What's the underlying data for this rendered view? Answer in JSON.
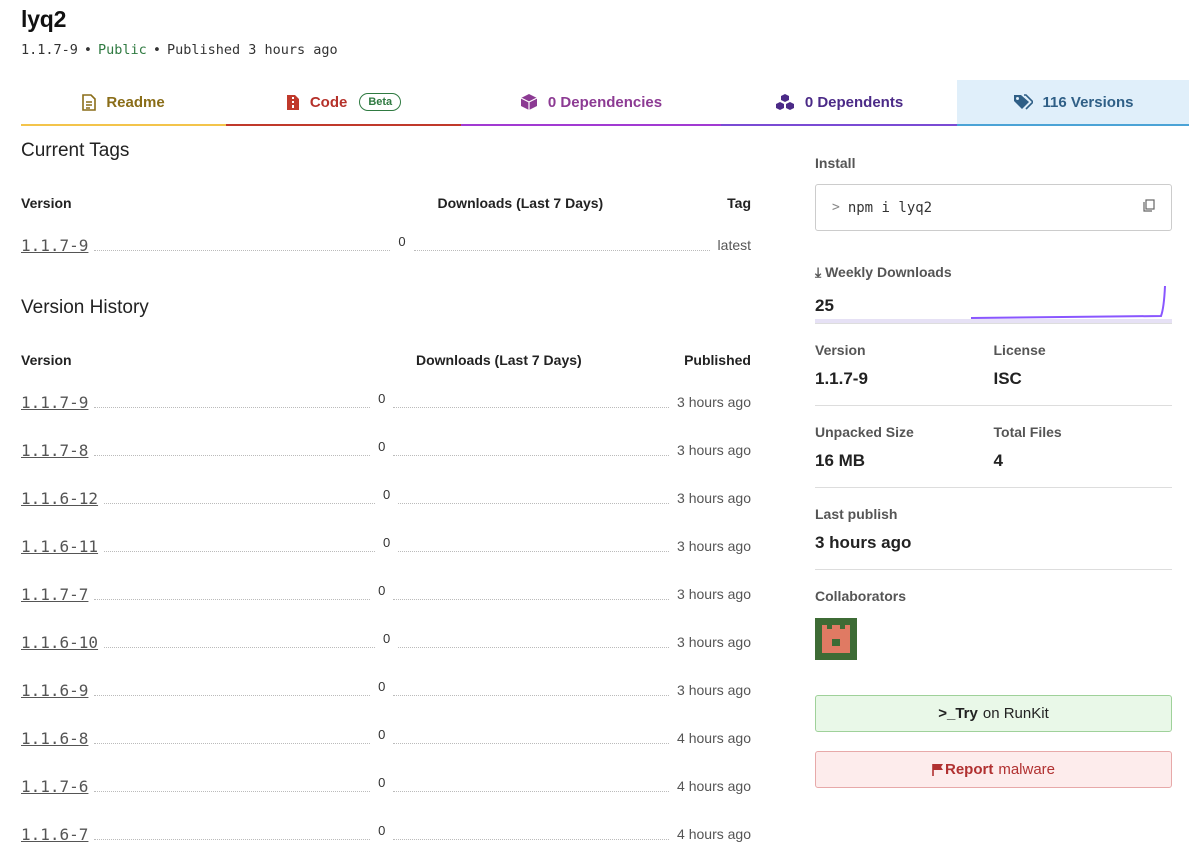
{
  "package": {
    "name": "lyq2",
    "version": "1.1.7-9",
    "visibility": "Public",
    "published": "Published 3 hours ago"
  },
  "tabs": {
    "readme": "Readme",
    "code": "Code",
    "code_badge": "Beta",
    "dependencies": "0 Dependencies",
    "dependents": "0 Dependents",
    "versions": "116 Versions"
  },
  "current_tags": {
    "title": "Current Tags",
    "headers": {
      "version": "Version",
      "downloads": "Downloads (Last 7 Days)",
      "tag": "Tag"
    },
    "rows": [
      {
        "version": "1.1.7-9",
        "downloads": "0",
        "tag": "latest"
      }
    ]
  },
  "version_history": {
    "title": "Version History",
    "headers": {
      "version": "Version",
      "downloads": "Downloads (Last 7 Days)",
      "published": "Published"
    },
    "rows": [
      {
        "version": "1.1.7-9",
        "downloads": "0",
        "published": "3 hours ago"
      },
      {
        "version": "1.1.7-8",
        "downloads": "0",
        "published": "3 hours ago"
      },
      {
        "version": "1.1.6-12",
        "downloads": "0",
        "published": "3 hours ago"
      },
      {
        "version": "1.1.6-11",
        "downloads": "0",
        "published": "3 hours ago"
      },
      {
        "version": "1.1.7-7",
        "downloads": "0",
        "published": "3 hours ago"
      },
      {
        "version": "1.1.6-10",
        "downloads": "0",
        "published": "3 hours ago"
      },
      {
        "version": "1.1.6-9",
        "downloads": "0",
        "published": "3 hours ago"
      },
      {
        "version": "1.1.6-8",
        "downloads": "0",
        "published": "4 hours ago"
      },
      {
        "version": "1.1.7-6",
        "downloads": "0",
        "published": "4 hours ago"
      },
      {
        "version": "1.1.6-7",
        "downloads": "0",
        "published": "4 hours ago"
      }
    ]
  },
  "sidebar": {
    "install_label": "Install",
    "install_command": "npm i lyq2",
    "weekly_label": "Weekly Downloads",
    "weekly_value": "25",
    "version_label": "Version",
    "version_value": "1.1.7-9",
    "license_label": "License",
    "license_value": "ISC",
    "unpacked_label": "Unpacked Size",
    "unpacked_value": "16 MB",
    "files_label": "Total Files",
    "files_value": "4",
    "last_publish_label": "Last publish",
    "last_publish_value": "3 hours ago",
    "collaborators_label": "Collaborators",
    "runkit_try": ">_Try",
    "runkit_rest": "on RunKit",
    "report_bold": "Report",
    "report_rest": "malware"
  },
  "colors": {
    "readme": "#f3c44b",
    "code": "#c0392b",
    "dependencies": "#a23ad2",
    "dependents": "#7a4bd4",
    "versions": "#4ba3d6",
    "sparkline": "#8956ff"
  }
}
